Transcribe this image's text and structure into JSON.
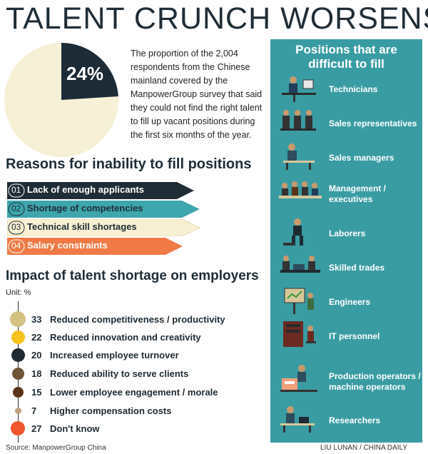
{
  "title": "TALENT CRUNCH WORSENS",
  "pie": {
    "value_label": "24%",
    "description": "The proportion of the 2,004 respondents from the Chinese mainland covered by the ManpowerGroup survey that said they could not find the right talent to fill up vacant positions during the first six months of the year.",
    "colors": {
      "highlight": "#1c2b36",
      "rest": "#f6f0d6"
    }
  },
  "reasons": {
    "heading": "Reasons for inability to fill positions",
    "items": [
      {
        "num": "01",
        "label": "Lack of enough applicants",
        "color": "#1f2d36",
        "text_color": "#ffffff"
      },
      {
        "num": "02",
        "label": "Shortage of competencies",
        "color": "#3ea6ad",
        "text_color": "#1f2d36"
      },
      {
        "num": "03",
        "label": "Technical skill shortages",
        "color": "#f7f0d2",
        "text_color": "#1f2d36"
      },
      {
        "num": "04",
        "label": "Salary constraints",
        "color": "#f07a45",
        "text_color": "#ffffff"
      }
    ]
  },
  "impact": {
    "heading": "Impact of talent shortage on employers",
    "unit": "Unit: %",
    "items": [
      {
        "value": "33",
        "label": "Reduced competitiveness / productivity",
        "color": "#d3c182"
      },
      {
        "value": "22",
        "label": "Reduced innovation and creativity",
        "color": "#f6c21c"
      },
      {
        "value": "20",
        "label": "Increased employee turnover",
        "color": "#1e2a32"
      },
      {
        "value": "18",
        "label": "Reduced ability to serve clients",
        "color": "#6e5536"
      },
      {
        "value": "15",
        "label": "Lower employee engagement / morale",
        "color": "#5a3418"
      },
      {
        "value": "7",
        "label": "Higher compensation costs",
        "color": "#c0a180"
      },
      {
        "value": "27",
        "label": "Don't know",
        "color": "#f2562d"
      }
    ]
  },
  "positions": {
    "heading_line1": "Positions that are",
    "heading_line2": "difficult to fill",
    "items": [
      {
        "label": "Technicians",
        "icon": "technician-icon"
      },
      {
        "label": "Sales representatives",
        "icon": "sales-reps-icon"
      },
      {
        "label": "Sales managers",
        "icon": "sales-managers-icon"
      },
      {
        "label": "Management / executives",
        "icon": "management-icon"
      },
      {
        "label": "Laborers",
        "icon": "laborer-icon"
      },
      {
        "label": "Skilled trades",
        "icon": "skilled-trades-icon"
      },
      {
        "label": "Engineers",
        "icon": "engineer-icon"
      },
      {
        "label": "IT personnel",
        "icon": "it-personnel-icon"
      },
      {
        "label": "Production operators / machine operators",
        "icon": "production-operator-icon"
      },
      {
        "label": "Researchers",
        "icon": "researcher-icon"
      }
    ]
  },
  "source": "Source: ManpowerGroup China",
  "credit": "LIU LUNAN / CHINA DAILY",
  "chart_data": {
    "type": "pie",
    "categories": [
      "could not find the right talent",
      "other"
    ],
    "values": [
      24,
      76
    ]
  }
}
